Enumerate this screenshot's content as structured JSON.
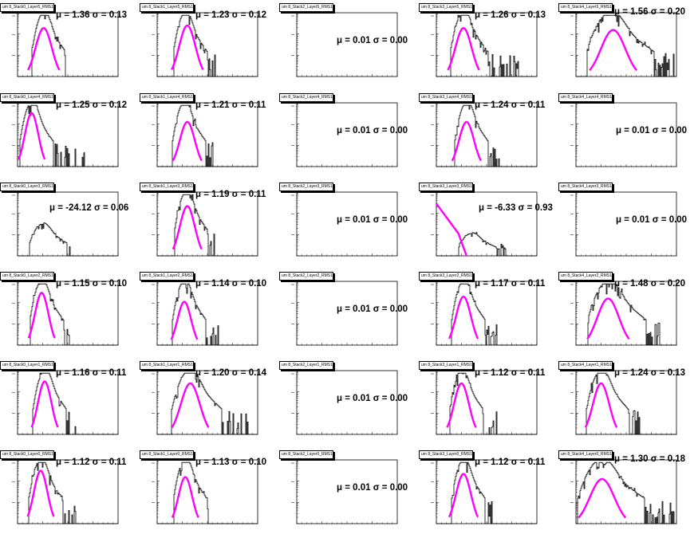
{
  "page": {
    "background": "#ffffff"
  },
  "colors": {
    "histogram": "#000000",
    "fit": "#ff00ff",
    "axes": "#000000"
  },
  "chart_data": [
    {
      "type": "histogram",
      "title": "um 8_Stack0_Layer5_RMS10",
      "mu": "1.36",
      "sigma": "0.13",
      "annotation": "μ = 1.36 σ = 0.13",
      "hist_shape": "peak",
      "hist_peak": 0.26,
      "hist_width": 0.04,
      "hist_tail": 0.25,
      "fit": "gauss",
      "fit_peak": 0.26,
      "fit_width": 0.06,
      "fit_height": 0.78
    },
    {
      "type": "histogram",
      "title": "um 8_Stack1_Layer5_RMS10",
      "mu": "1.23",
      "sigma": "0.12",
      "annotation": "μ = 1.23 σ = 0.12",
      "hist_shape": "peak",
      "hist_peak": 0.28,
      "hist_width": 0.04,
      "hist_tail": 0.3,
      "fit": "gauss",
      "fit_peak": 0.3,
      "fit_width": 0.06,
      "fit_height": 0.82
    },
    {
      "type": "histogram",
      "title": "um 8_Stack2_Layer5_RMS10",
      "mu": "0.01",
      "sigma": "0.00",
      "annotation": "μ = 0.01 σ = 0.00",
      "hist_shape": "empty"
    },
    {
      "type": "histogram",
      "title": "um 8_Stack3_Layer5_RMS10",
      "mu": "1.26",
      "sigma": "0.13",
      "annotation": "μ = 1.26 σ = 0.13",
      "hist_shape": "peak",
      "hist_peak": 0.27,
      "hist_width": 0.045,
      "hist_tail": 0.55,
      "fit": "gauss",
      "fit_peak": 0.27,
      "fit_width": 0.06,
      "fit_height": 0.78
    },
    {
      "type": "histogram",
      "title": "um 8_Stack4_Layer5_RMS10",
      "mu": "1.56",
      "sigma": "0.20",
      "annotation": "μ = 1.56 σ = 0.20",
      "hist_shape": "peak",
      "hist_peak": 0.34,
      "hist_width": 0.08,
      "hist_tail": 0.9,
      "fit": "gauss",
      "fit_peak": 0.37,
      "fit_width": 0.09,
      "fit_height": 0.75
    },
    {
      "type": "histogram",
      "title": "um 8_Stack0_Layer4_RMS10",
      "mu": "1.25",
      "sigma": "0.12",
      "annotation": "μ = 1.25 σ = 0.12",
      "hist_shape": "peak",
      "hist_peak": 0.14,
      "hist_width": 0.04,
      "hist_tail": 0.55,
      "fit": "gauss",
      "fit_peak": 0.14,
      "fit_width": 0.05,
      "fit_height": 0.86
    },
    {
      "type": "histogram",
      "title": "um 8_Stack1_Layer4_RMS10",
      "mu": "1.21",
      "sigma": "0.11",
      "annotation": "μ = 1.21 σ = 0.11",
      "hist_shape": "peak",
      "hist_peak": 0.27,
      "hist_width": 0.04,
      "hist_tail": 0.3,
      "fit": "gauss",
      "fit_peak": 0.3,
      "fit_width": 0.055,
      "fit_height": 0.72
    },
    {
      "type": "histogram",
      "title": "um 8_Stack2_Layer4_RMS10",
      "mu": "0.01",
      "sigma": "0.00",
      "annotation": "μ = 0.01 σ = 0.00",
      "hist_shape": "empty"
    },
    {
      "type": "histogram",
      "title": "um 8_Stack3_Layer4_RMS10",
      "mu": "1.24",
      "sigma": "0.11",
      "annotation": "μ = 1.24 σ = 0.11",
      "hist_shape": "peak",
      "hist_peak": 0.3,
      "hist_width": 0.04,
      "hist_tail": 0.35,
      "fit": "gauss",
      "fit_peak": 0.3,
      "fit_width": 0.055,
      "fit_height": 0.72
    },
    {
      "type": "histogram",
      "title": "um 8_Stack4_Layer4_RMS10",
      "mu": "0.01",
      "sigma": "0.00",
      "annotation": "μ = 0.01 σ = 0.00",
      "hist_shape": "empty"
    },
    {
      "type": "histogram",
      "title": "um 8_Stack0_Layer3_RMS10",
      "mu": "-24.12",
      "sigma": "0.06",
      "annotation": "μ = -24.12 σ = 0.06",
      "hist_shape": "peak",
      "hist_peak": 0.25,
      "hist_width": 0.045,
      "hist_tail": 0.3,
      "hist_height": 0.5,
      "fit": "none"
    },
    {
      "type": "histogram",
      "title": "um 8_Stack1_Layer3_RMS10",
      "mu": "1.19",
      "sigma": "0.11",
      "annotation": "μ = 1.19 σ = 0.11",
      "hist_shape": "peak",
      "hist_peak": 0.29,
      "hist_width": 0.04,
      "hist_tail": 0.3,
      "fit": "gauss",
      "fit_peak": 0.3,
      "fit_width": 0.055,
      "fit_height": 0.8
    },
    {
      "type": "histogram",
      "title": "um 8_Stack2_Layer3_RMS10",
      "mu": "0.01",
      "sigma": "0.00",
      "annotation": "μ = 0.01 σ = 0.00",
      "hist_shape": "empty"
    },
    {
      "type": "histogram",
      "title": "um 8_Stack3_Layer3_RMS10",
      "mu": "-6.33",
      "sigma": "0.93",
      "annotation": "μ = -6.33 σ = 0.93",
      "hist_shape": "peak",
      "hist_peak": 0.35,
      "hist_width": 0.045,
      "hist_tail": 0.35,
      "hist_height": 0.35,
      "fit": "exp",
      "fit_height": 0.82
    },
    {
      "type": "histogram",
      "title": "um 8_Stack4_Layer3_RMS10",
      "mu": "0.01",
      "sigma": "0.00",
      "annotation": "μ = 0.01 σ = 0.00",
      "hist_shape": "empty"
    },
    {
      "type": "histogram",
      "title": "um 8_Stack0_Layer2_RMS10",
      "mu": "1.15",
      "sigma": "0.10",
      "annotation": "μ = 1.15 σ = 0.10",
      "hist_shape": "peak",
      "hist_peak": 0.24,
      "hist_width": 0.04,
      "hist_tail": 0.3,
      "fit": "gauss",
      "fit_peak": 0.24,
      "fit_width": 0.05,
      "fit_height": 0.84
    },
    {
      "type": "histogram",
      "title": "um 8_Stack1_Layer2_RMS10",
      "mu": "1.14",
      "sigma": "0.10",
      "annotation": "μ = 1.14 σ = 0.10",
      "hist_shape": "peak",
      "hist_peak": 0.27,
      "hist_width": 0.04,
      "hist_tail": 0.35,
      "fit": "gauss",
      "fit_peak": 0.27,
      "fit_width": 0.05,
      "fit_height": 0.7
    },
    {
      "type": "histogram",
      "title": "um 8_Stack2_Layer2_RMS10",
      "mu": "0.01",
      "sigma": "0.00",
      "annotation": "μ = 0.01 σ = 0.00",
      "hist_shape": "empty"
    },
    {
      "type": "histogram",
      "title": "um 8_Stack3_Layer2_RMS10",
      "mu": "1.17",
      "sigma": "0.11",
      "annotation": "μ = 1.17 σ = 0.11",
      "hist_shape": "peak",
      "hist_peak": 0.27,
      "hist_width": 0.04,
      "hist_tail": 0.35,
      "fit": "gauss",
      "fit_peak": 0.27,
      "fit_width": 0.055,
      "fit_height": 0.78
    },
    {
      "type": "histogram",
      "title": "um 8_Stack4_Layer2_RMS10",
      "mu": "1.48",
      "sigma": "0.20",
      "annotation": "μ = 1.48 σ = 0.20",
      "hist_shape": "peak",
      "hist_peak": 0.32,
      "hist_width": 0.07,
      "hist_tail": 0.55,
      "fit": "gauss",
      "fit_peak": 0.32,
      "fit_width": 0.08,
      "fit_height": 0.75
    },
    {
      "type": "histogram",
      "title": "um 8_Stack0_Layer1_RMS10",
      "mu": "1.16",
      "sigma": "0.11",
      "annotation": "μ = 1.16 σ = 0.11",
      "hist_shape": "peak",
      "hist_peak": 0.27,
      "hist_width": 0.04,
      "hist_tail": 0.35,
      "fit": "gauss",
      "fit_peak": 0.27,
      "fit_width": 0.05,
      "fit_height": 0.85
    },
    {
      "type": "histogram",
      "title": "um 8_Stack1_Layer1_RMS10",
      "mu": "1.20",
      "sigma": "0.14",
      "annotation": "μ = 1.20 σ = 0.14",
      "hist_shape": "peak",
      "hist_peak": 0.32,
      "hist_width": 0.06,
      "hist_tail": 0.6,
      "fit": "gauss",
      "fit_peak": 0.33,
      "fit_width": 0.07,
      "fit_height": 0.82
    },
    {
      "type": "histogram",
      "title": "um 8_Stack2_Layer1_RMS10",
      "mu": "0.01",
      "sigma": "0.00",
      "annotation": "μ = 0.01 σ = 0.00",
      "hist_shape": "empty"
    },
    {
      "type": "histogram",
      "title": "um 8_Stack3_Layer1_RMS10",
      "mu": "1.12",
      "sigma": "0.11",
      "annotation": "μ = 1.12 σ = 0.11",
      "hist_shape": "peak",
      "hist_peak": 0.25,
      "hist_width": 0.04,
      "hist_tail": 0.35,
      "fit": "gauss",
      "fit_peak": 0.25,
      "fit_width": 0.055,
      "fit_height": 0.82
    },
    {
      "type": "histogram",
      "title": "um 8_Stack4_Layer1_RMS10",
      "mu": "1.24",
      "sigma": "0.13",
      "annotation": "μ = 1.24 σ = 0.13",
      "hist_shape": "peak",
      "hist_peak": 0.25,
      "hist_width": 0.05,
      "hist_tail": 0.4,
      "fit": "gauss",
      "fit_peak": 0.25,
      "fit_width": 0.06,
      "fit_height": 0.82
    },
    {
      "type": "histogram",
      "title": "um 8_Stack0_Layer0_RMS10",
      "mu": "1.12",
      "sigma": "0.11",
      "annotation": "μ = 1.12 σ = 0.11",
      "hist_shape": "peak",
      "hist_peak": 0.23,
      "hist_width": 0.04,
      "hist_tail": 0.35,
      "fit": "gauss",
      "fit_peak": 0.23,
      "fit_width": 0.05,
      "fit_height": 0.85
    },
    {
      "type": "histogram",
      "title": "um 8_Stack1_Layer0_RMS10",
      "mu": "1.13",
      "sigma": "0.10",
      "annotation": "μ = 1.13 σ = 0.10",
      "hist_shape": "peak",
      "hist_peak": 0.28,
      "hist_width": 0.04,
      "hist_tail": 0.3,
      "fit": "gauss",
      "fit_peak": 0.28,
      "fit_width": 0.05,
      "fit_height": 0.75
    },
    {
      "type": "histogram",
      "title": "um 8_Stack2_Layer0_RMS10",
      "mu": "0.01",
      "sigma": "0.00",
      "annotation": "μ = 0.01 σ = 0.00",
      "hist_shape": "empty"
    },
    {
      "type": "histogram",
      "title": "um 8_Stack3_Layer0_RMS10",
      "mu": "1.12",
      "sigma": "0.11",
      "annotation": "μ = 1.12 σ = 0.11",
      "hist_shape": "peak",
      "hist_peak": 0.27,
      "hist_width": 0.04,
      "hist_tail": 0.3,
      "fit": "gauss",
      "fit_peak": 0.27,
      "fit_width": 0.055,
      "fit_height": 0.8
    },
    {
      "type": "histogram",
      "title": "um 8_Stack4_Layer0_RMS10",
      "mu": "1.30",
      "sigma": "0.18",
      "annotation": "μ = 1.30 σ = 0.18",
      "hist_shape": "peak",
      "hist_peak": 0.25,
      "hist_width": 0.08,
      "hist_tail": 0.9,
      "fit": "gauss",
      "fit_peak": 0.26,
      "fit_width": 0.09,
      "fit_height": 0.72
    }
  ]
}
